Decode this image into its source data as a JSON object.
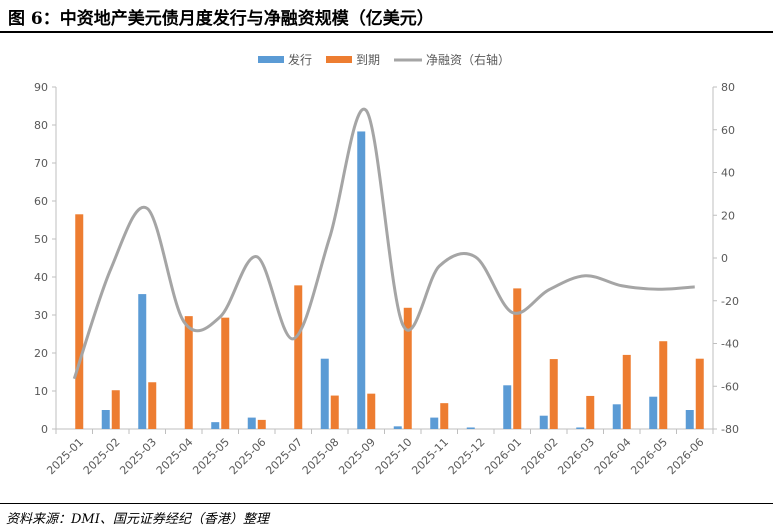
{
  "header": {
    "title": "图 6：中资地产美元债月度发行与净融资规模（亿美元）"
  },
  "footer": {
    "source": "资料来源：DMI、国元证券经纪（香港）整理"
  },
  "chart_data": {
    "type": "bar",
    "title": "图 6：中资地产美元债月度发行与净融资规模（亿美元）",
    "xlabel": "",
    "ylabel": "",
    "categories": [
      "2025-01",
      "2025-02",
      "2025-03",
      "2025-04",
      "2025-05",
      "2025-06",
      "2025-07",
      "2025-08",
      "2025-09",
      "2025-10",
      "2025-11",
      "2025-12",
      "2026-01",
      "2026-02",
      "2026-03",
      "2026-04",
      "2026-05",
      "2026-06"
    ],
    "series": [
      {
        "name": "发行",
        "type": "bar",
        "axis": "left",
        "color": "#5B9BD5",
        "values": [
          0,
          5.0,
          35.5,
          0,
          1.8,
          3.0,
          0,
          18.5,
          78.3,
          0.7,
          3.0,
          0.4,
          11.5,
          3.5,
          0.4,
          6.5,
          8.5,
          5.0
        ]
      },
      {
        "name": "到期",
        "type": "bar",
        "axis": "left",
        "color": "#ED7D31",
        "values": [
          56.5,
          10.2,
          12.3,
          29.7,
          29.3,
          2.4,
          37.8,
          8.8,
          9.3,
          31.9,
          6.8,
          0,
          37.0,
          18.4,
          8.7,
          19.5,
          23.1,
          18.5
        ]
      },
      {
        "name": "净融资（右轴）",
        "type": "line",
        "axis": "right",
        "color": "#A5A5A5",
        "values": [
          -56.5,
          -5.2,
          23.2,
          -29.7,
          -27.5,
          0.6,
          -37.8,
          9.7,
          69.0,
          -31.2,
          -3.8,
          0.4,
          -25.5,
          -14.9,
          -8.3,
          -13.0,
          -14.6,
          -13.5
        ]
      }
    ],
    "ylim": [
      0,
      90
    ],
    "yticks": [
      0,
      10,
      20,
      30,
      40,
      50,
      60,
      70,
      80,
      90
    ],
    "y2lim": [
      -80,
      80
    ],
    "y2ticks": [
      -80,
      -60,
      -40,
      -20,
      0,
      20,
      40,
      60,
      80
    ],
    "legend": {
      "position": "top"
    },
    "grid": false
  }
}
